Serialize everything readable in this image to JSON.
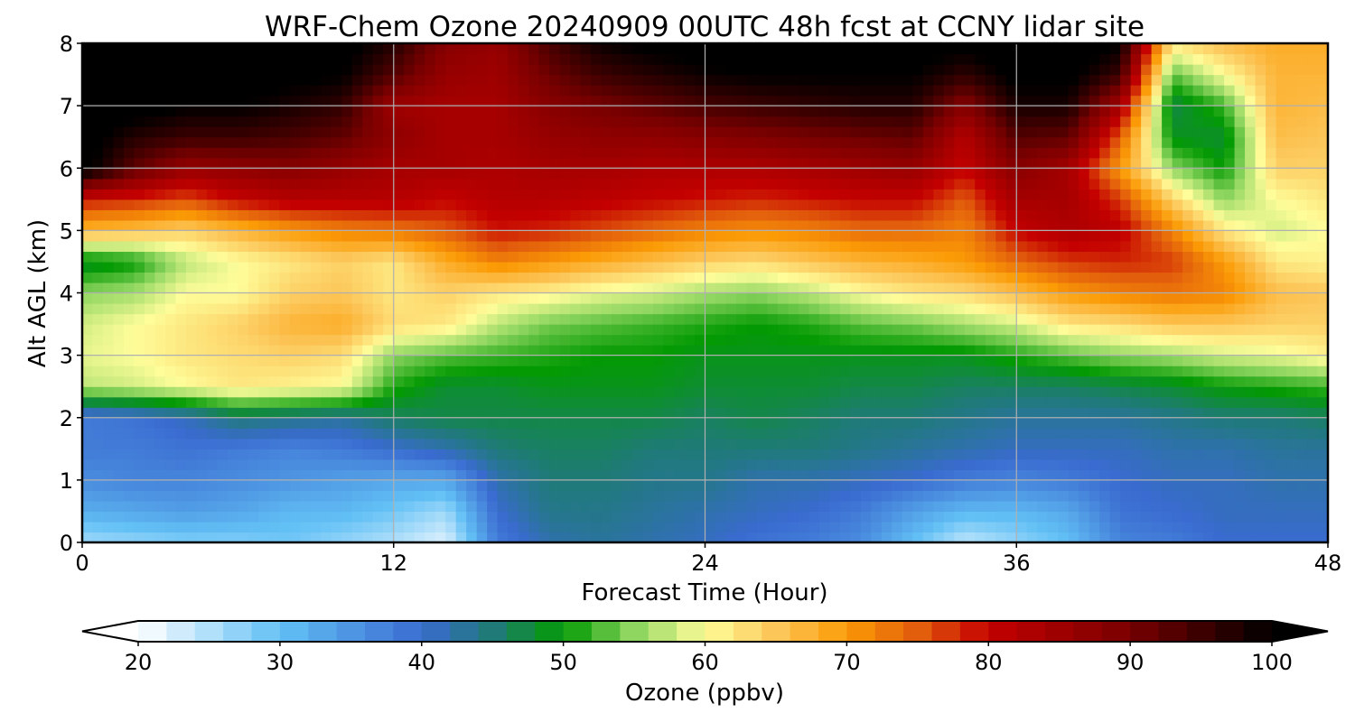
{
  "chart_data": {
    "type": "heatmap",
    "title": "WRF-Chem Ozone  20240909 00UTC 48h fcst at CCNY lidar site",
    "xlabel": "Forecast Time (Hour)",
    "ylabel": "Alt AGL (km)",
    "xlim": [
      0,
      48
    ],
    "ylim": [
      0,
      8
    ],
    "xticks": [
      0,
      12,
      24,
      36,
      48
    ],
    "xtick_labels": [
      "0",
      "12",
      "24",
      "36",
      "48"
    ],
    "yticks": [
      0,
      1,
      2,
      3,
      4,
      5,
      6,
      7,
      8
    ],
    "ytick_labels": [
      "0",
      "1",
      "2",
      "3",
      "4",
      "5",
      "6",
      "7",
      "8"
    ],
    "grid": true,
    "colorbar": {
      "label": "Ozone  (ppbv)",
      "orientation": "horizontal",
      "extend": "both",
      "range": [
        20,
        100
      ],
      "ticks": [
        20,
        30,
        40,
        50,
        60,
        70,
        80,
        90,
        100
      ],
      "tick_labels": [
        "20",
        "30",
        "40",
        "50",
        "60",
        "70",
        "80",
        "90",
        "100"
      ],
      "color_stops": [
        {
          "v": 20,
          "c": "#ffffff"
        },
        {
          "v": 30,
          "c": "#62c0f5"
        },
        {
          "v": 40,
          "c": "#3a6bd0"
        },
        {
          "v": 45,
          "c": "#1f7a78"
        },
        {
          "v": 50,
          "c": "#039a03"
        },
        {
          "v": 55,
          "c": "#8fd660"
        },
        {
          "v": 60,
          "c": "#fefd9a"
        },
        {
          "v": 65,
          "c": "#fcc659"
        },
        {
          "v": 70,
          "c": "#fb9b06"
        },
        {
          "v": 75,
          "c": "#e25e0c"
        },
        {
          "v": 80,
          "c": "#c40000"
        },
        {
          "v": 90,
          "c": "#780000"
        },
        {
          "v": 100,
          "c": "#000000"
        }
      ],
      "under_color": "#ffffff",
      "over_color": "#000000"
    },
    "time_hours": [
      0,
      2,
      4,
      6,
      8,
      10,
      12,
      14,
      16,
      18,
      20,
      22,
      24,
      26,
      28,
      30,
      32,
      34,
      36,
      38,
      40,
      42,
      44,
      46,
      48
    ],
    "altitudes_km": [
      0,
      0.5,
      1,
      1.5,
      2,
      2.5,
      3,
      3.5,
      4,
      4.5,
      5,
      5.5,
      6,
      6.5,
      7,
      7.5,
      8
    ],
    "ozone_ppbv": [
      [
        26,
        32,
        36,
        38,
        38,
        57,
        59,
        58,
        55,
        48,
        67,
        79,
        102,
        102,
        103,
        103,
        103
      ],
      [
        27,
        33,
        37,
        38,
        39,
        58,
        60,
        60,
        56,
        50,
        66,
        78,
        92,
        97,
        102,
        103,
        103
      ],
      [
        28,
        34,
        37,
        39,
        41,
        60,
        62,
        62,
        60,
        57,
        64,
        76,
        86,
        95,
        100,
        102,
        103
      ],
      [
        28,
        33,
        36,
        38,
        45,
        62,
        63,
        64,
        60,
        60,
        67,
        80,
        87,
        95,
        100,
        102,
        103
      ],
      [
        29,
        31,
        35,
        37,
        44,
        61,
        64,
        67,
        64,
        62,
        70,
        82,
        88,
        94,
        98,
        101,
        103
      ],
      [
        27,
        31,
        34,
        38,
        43,
        60,
        63,
        68,
        65,
        64,
        72,
        82,
        86,
        92,
        96,
        100,
        102
      ],
      [
        25,
        29,
        33,
        40,
        46,
        51,
        55,
        63,
        62,
        62,
        73,
        82,
        84,
        87,
        85,
        93,
        97
      ],
      [
        22,
        26,
        33,
        42,
        47,
        48,
        53,
        62,
        64,
        68,
        75,
        80,
        84,
        84,
        84,
        86,
        88
      ],
      [
        38,
        40,
        42,
        45,
        47,
        48,
        52,
        57,
        62,
        72,
        79,
        82,
        83,
        84,
        84,
        85,
        86
      ],
      [
        42,
        44,
        45,
        46,
        47,
        49,
        51,
        54,
        61,
        70,
        78,
        82,
        84,
        86,
        88,
        91,
        94
      ],
      [
        43,
        44,
        45,
        46,
        47,
        49,
        50,
        53,
        59,
        68,
        76,
        81,
        84,
        87,
        90,
        95,
        99
      ],
      [
        42,
        43,
        44,
        45,
        47,
        49,
        50,
        52,
        58,
        66,
        74,
        80,
        83,
        87,
        92,
        97,
        101
      ],
      [
        41,
        42,
        44,
        45,
        46,
        48,
        49,
        51,
        56,
        64,
        72,
        79,
        83,
        88,
        94,
        99,
        102
      ],
      [
        39,
        41,
        42,
        45,
        47,
        48,
        49,
        50,
        55,
        63,
        71,
        78,
        83,
        89,
        95,
        100,
        102
      ],
      [
        38,
        40,
        42,
        45,
        46,
        48,
        49,
        51,
        57,
        65,
        72,
        79,
        84,
        90,
        96,
        100,
        102
      ],
      [
        36,
        38,
        41,
        44,
        45,
        47,
        49,
        53,
        60,
        67,
        74,
        80,
        85,
        91,
        97,
        100,
        102
      ],
      [
        30,
        34,
        40,
        43,
        45,
        47,
        49,
        54,
        62,
        68,
        74,
        80,
        86,
        92,
        97,
        100,
        102
      ],
      [
        24,
        31,
        38,
        42,
        44,
        46,
        49,
        56,
        63,
        70,
        72,
        75,
        80,
        82,
        88,
        96,
        101
      ],
      [
        27,
        31,
        37,
        41,
        43,
        46,
        51,
        58,
        66,
        74,
        80,
        84,
        88,
        93,
        98,
        101,
        103
      ],
      [
        30,
        33,
        38,
        41,
        43,
        46,
        53,
        62,
        70,
        77,
        83,
        84,
        84,
        92,
        98,
        101,
        103
      ],
      [
        37,
        39,
        40,
        41,
        43,
        47,
        55,
        63,
        72,
        78,
        81,
        77,
        70,
        75,
        84,
        95,
        100
      ],
      [
        38,
        40,
        41,
        42,
        44,
        48,
        56,
        65,
        73,
        77,
        72,
        64,
        55,
        49,
        47,
        53,
        62
      ],
      [
        40,
        41,
        41,
        42,
        45,
        50,
        58,
        65,
        72,
        70,
        62,
        55,
        50,
        48,
        52,
        60,
        66
      ],
      [
        40,
        41,
        42,
        43,
        45,
        51,
        59,
        64,
        66,
        62,
        58,
        60,
        64,
        66,
        67,
        67,
        68
      ],
      [
        40,
        41,
        42,
        43,
        46,
        52,
        61,
        64,
        65,
        61,
        60,
        62,
        64,
        65,
        66,
        67,
        68
      ]
    ]
  }
}
